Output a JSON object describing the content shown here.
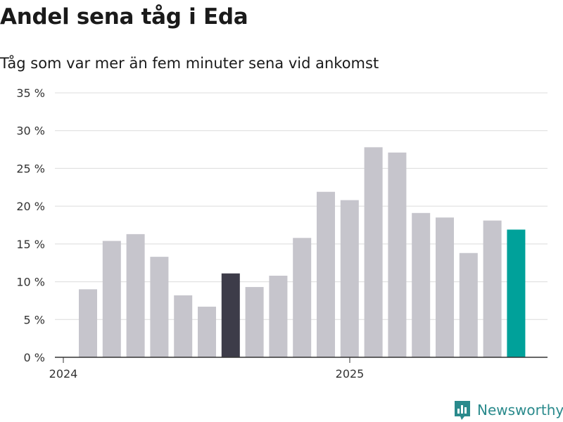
{
  "chart_data": {
    "type": "bar",
    "title": "Andel sena tåg i Eda",
    "subtitle": "Tåg som var mer än fem minuter sena vid ankomst",
    "xlabel": "",
    "ylabel": "",
    "ylim": [
      0,
      35
    ],
    "y_ticks": [
      0,
      5,
      10,
      15,
      20,
      25,
      30,
      35
    ],
    "y_tick_labels": [
      "0 %",
      "5 %",
      "10 %",
      "15 %",
      "20 %",
      "25 %",
      "30 %",
      "35 %"
    ],
    "x_tick_labels": [
      "2024",
      "2025"
    ],
    "values": [
      9,
      15.4,
      16.3,
      13.3,
      8.2,
      6.7,
      11.1,
      9.3,
      10.8,
      15.8,
      21.9,
      20.8,
      27.8,
      27.1,
      19.1,
      18.5,
      13.8,
      18.1,
      16.9
    ],
    "bar_colors": [
      "#c6c5cc",
      "#c6c5cc",
      "#c6c5cc",
      "#c6c5cc",
      "#c6c5cc",
      "#c6c5cc",
      "#3d3c49",
      "#c6c5cc",
      "#c6c5cc",
      "#c6c5cc",
      "#c6c5cc",
      "#c6c5cc",
      "#c6c5cc",
      "#c6c5cc",
      "#c6c5cc",
      "#c6c5cc",
      "#c6c5cc",
      "#c6c5cc",
      "#00a19a"
    ],
    "grid": true
  },
  "brand": {
    "name": "Newsworthy",
    "icon": "newsworthy-logo-icon",
    "color": "#2a8a8c"
  }
}
